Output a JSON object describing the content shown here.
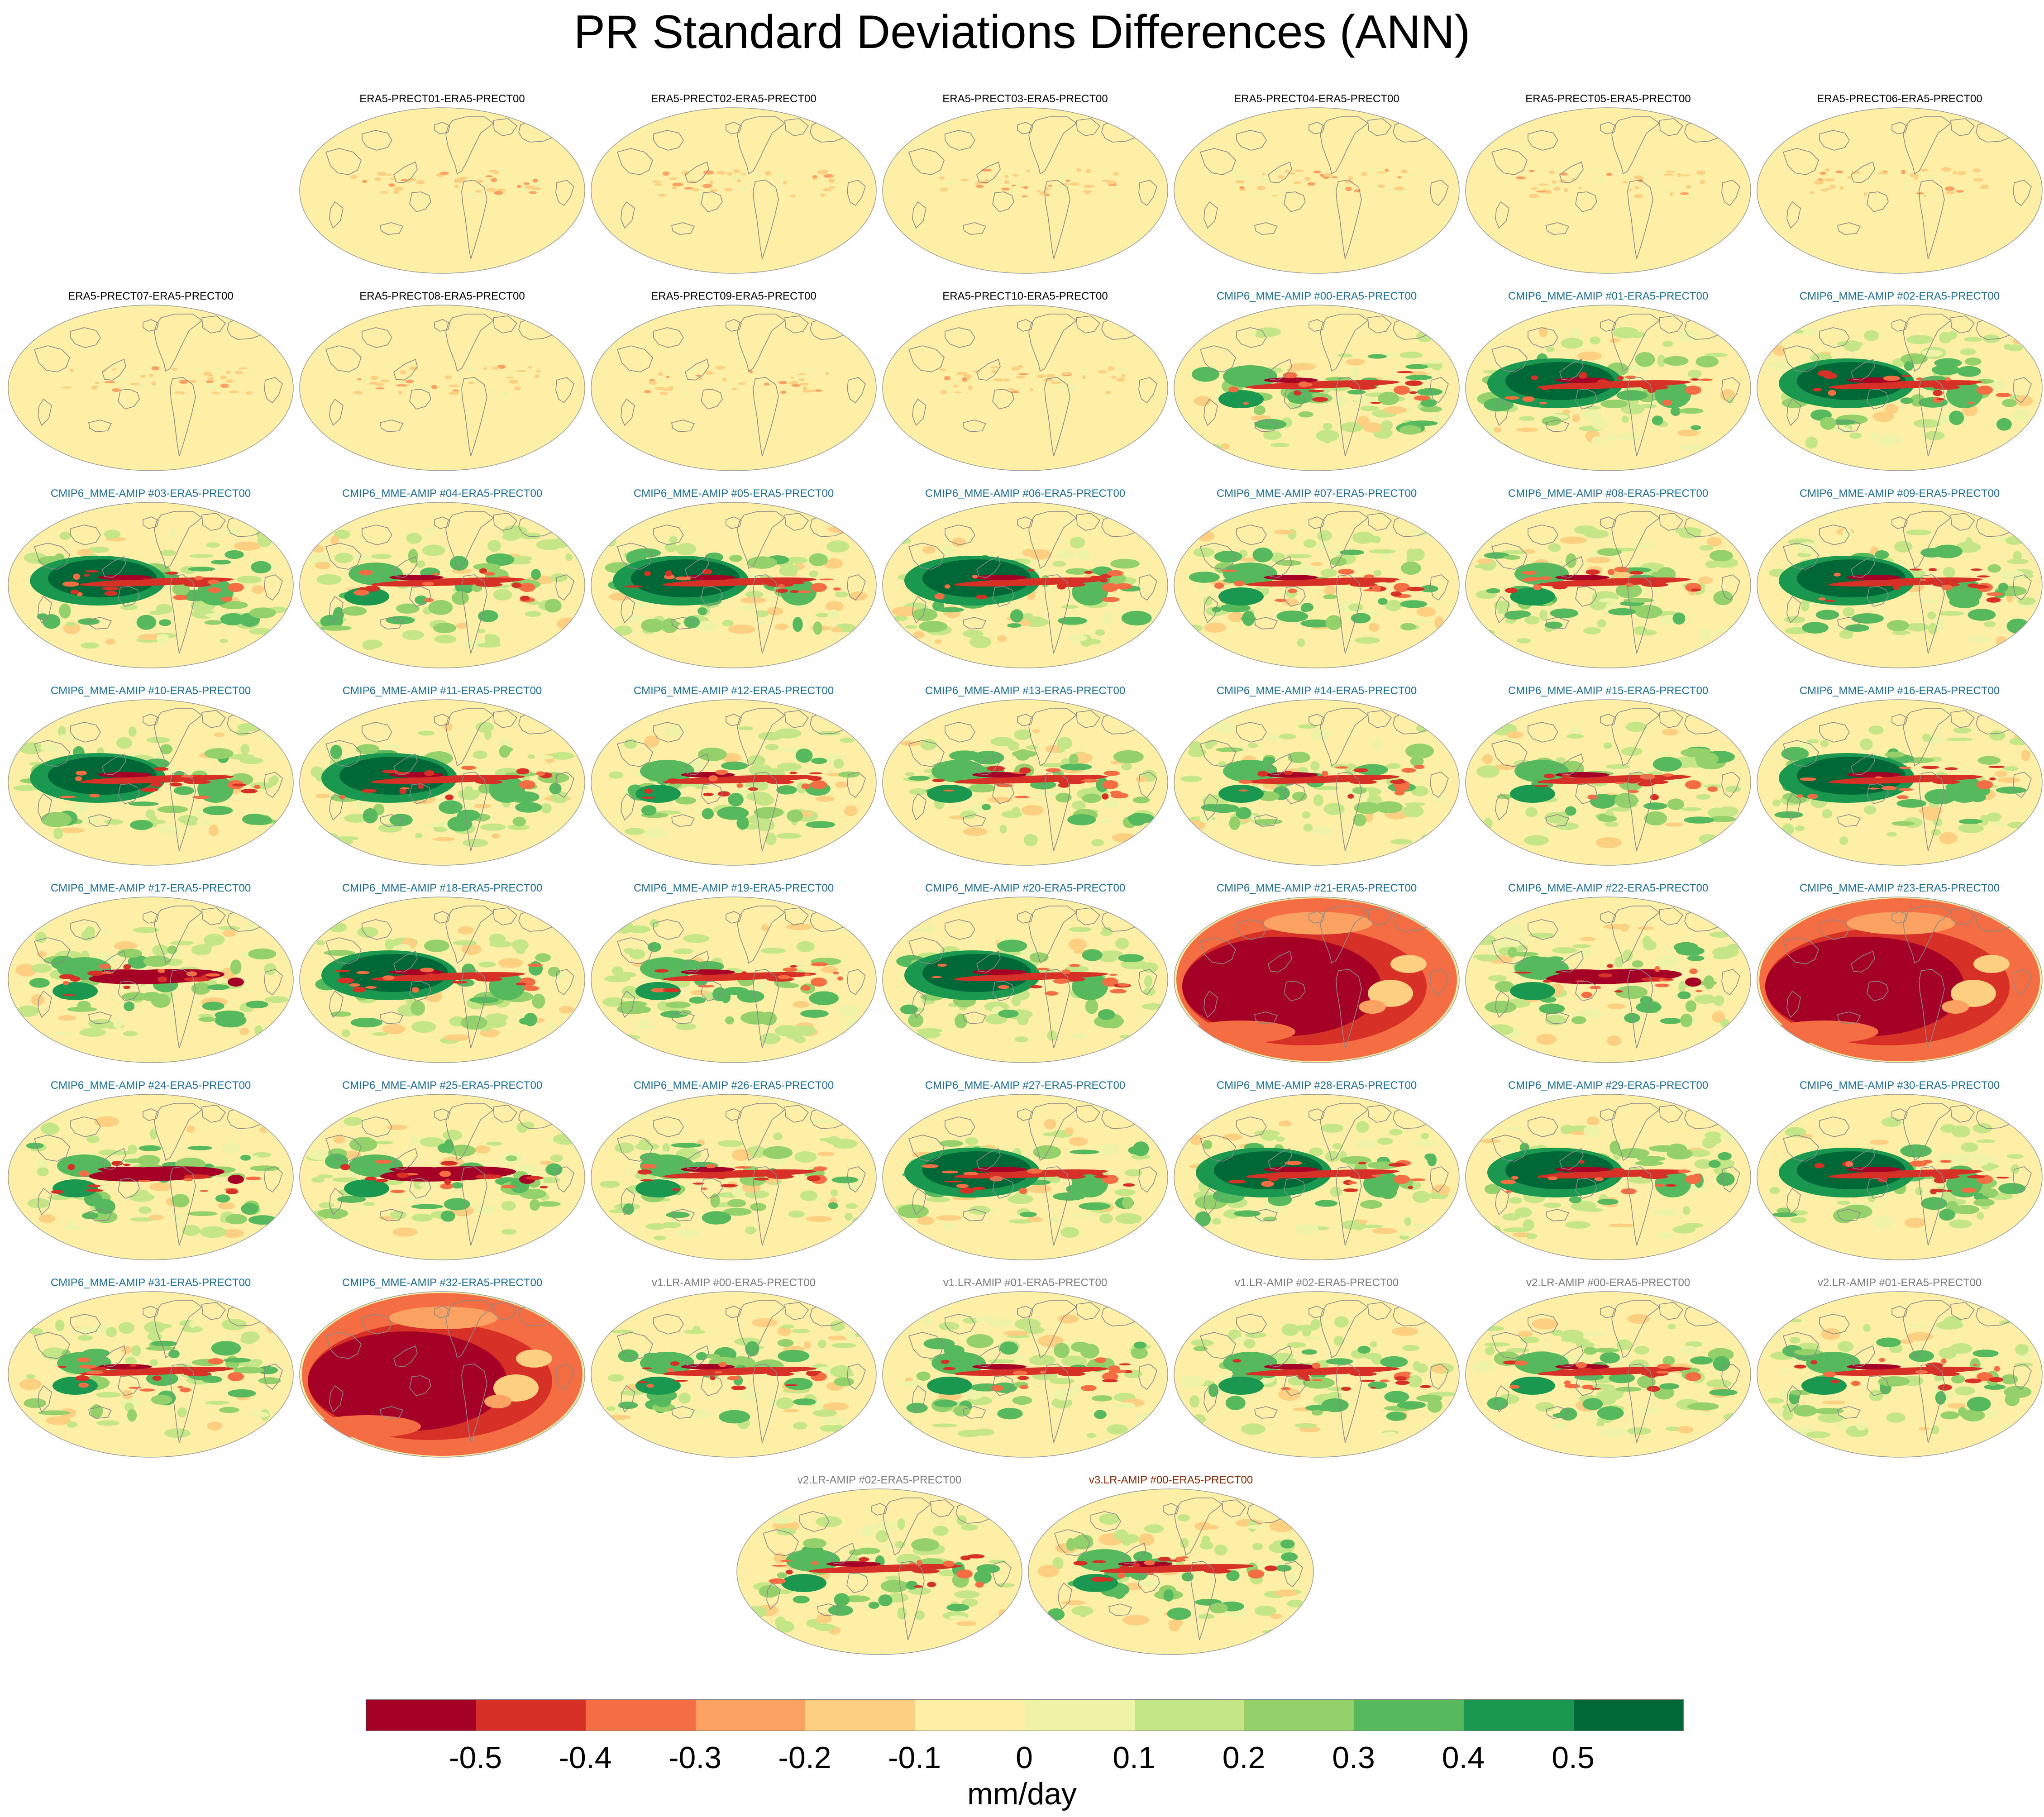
{
  "title": "PR Standard Deviations Differences (ANN)",
  "colors": {
    "ocean_base": "#fdf0a6",
    "coast": "#8a8a8a",
    "title_era5": "#000000",
    "title_cmip6": "#1a6e96",
    "title_v1v2": "#7a7a7a",
    "title_v3": "#8b2500"
  },
  "colorbar": {
    "colors": [
      "#a50026",
      "#d73027",
      "#f46d43",
      "#fba262",
      "#fdcf80",
      "#fdf0a6",
      "#eef3a8",
      "#c4e687",
      "#94d16b",
      "#57b95e",
      "#1a9850",
      "#006837"
    ],
    "ticks": [
      "-0.5",
      "-0.4",
      "-0.3",
      "-0.2",
      "-0.1",
      "0",
      "0.1",
      "0.2",
      "0.3",
      "0.4",
      "0.5"
    ],
    "units": "mm/day"
  },
  "panels": [
    {
      "title": "ERA5-PRECT01-ERA5-PRECT00",
      "group": "era5",
      "pattern": "weak"
    },
    {
      "title": "ERA5-PRECT02-ERA5-PRECT00",
      "group": "era5",
      "pattern": "weak"
    },
    {
      "title": "ERA5-PRECT03-ERA5-PRECT00",
      "group": "era5",
      "pattern": "weak"
    },
    {
      "title": "ERA5-PRECT04-ERA5-PRECT00",
      "group": "era5",
      "pattern": "weak"
    },
    {
      "title": "ERA5-PRECT05-ERA5-PRECT00",
      "group": "era5",
      "pattern": "weak"
    },
    {
      "title": "ERA5-PRECT06-ERA5-PRECT00",
      "group": "era5",
      "pattern": "weak"
    },
    {
      "title": "ERA5-PRECT07-ERA5-PRECT00",
      "group": "era5",
      "pattern": "weak"
    },
    {
      "title": "ERA5-PRECT08-ERA5-PRECT00",
      "group": "era5",
      "pattern": "weak"
    },
    {
      "title": "ERA5-PRECT09-ERA5-PRECT00",
      "group": "era5",
      "pattern": "weak"
    },
    {
      "title": "ERA5-PRECT10-ERA5-PRECT00",
      "group": "era5",
      "pattern": "weak"
    },
    {
      "title": "CMIP6_MME-AMIP  #00-ERA5-PRECT00",
      "group": "cmip6",
      "pattern": "mixed"
    },
    {
      "title": "CMIP6_MME-AMIP  #01-ERA5-PRECT00",
      "group": "cmip6",
      "pattern": "green"
    },
    {
      "title": "CMIP6_MME-AMIP  #02-ERA5-PRECT00",
      "group": "cmip6",
      "pattern": "green"
    },
    {
      "title": "CMIP6_MME-AMIP  #03-ERA5-PRECT00",
      "group": "cmip6",
      "pattern": "green"
    },
    {
      "title": "CMIP6_MME-AMIP  #04-ERA5-PRECT00",
      "group": "cmip6",
      "pattern": "mixed"
    },
    {
      "title": "CMIP6_MME-AMIP  #05-ERA5-PRECT00",
      "group": "cmip6",
      "pattern": "green"
    },
    {
      "title": "CMIP6_MME-AMIP  #06-ERA5-PRECT00",
      "group": "cmip6",
      "pattern": "green"
    },
    {
      "title": "CMIP6_MME-AMIP  #07-ERA5-PRECT00",
      "group": "cmip6",
      "pattern": "mixed"
    },
    {
      "title": "CMIP6_MME-AMIP  #08-ERA5-PRECT00",
      "group": "cmip6",
      "pattern": "mixed"
    },
    {
      "title": "CMIP6_MME-AMIP  #09-ERA5-PRECT00",
      "group": "cmip6",
      "pattern": "green"
    },
    {
      "title": "CMIP6_MME-AMIP  #10-ERA5-PRECT00",
      "group": "cmip6",
      "pattern": "green"
    },
    {
      "title": "CMIP6_MME-AMIP  #11-ERA5-PRECT00",
      "group": "cmip6",
      "pattern": "green"
    },
    {
      "title": "CMIP6_MME-AMIP  #12-ERA5-PRECT00",
      "group": "cmip6",
      "pattern": "mixed"
    },
    {
      "title": "CMIP6_MME-AMIP  #13-ERA5-PRECT00",
      "group": "cmip6",
      "pattern": "mixed"
    },
    {
      "title": "CMIP6_MME-AMIP  #14-ERA5-PRECT00",
      "group": "cmip6",
      "pattern": "mixed"
    },
    {
      "title": "CMIP6_MME-AMIP  #15-ERA5-PRECT00",
      "group": "cmip6",
      "pattern": "mixed"
    },
    {
      "title": "CMIP6_MME-AMIP  #16-ERA5-PRECT00",
      "group": "cmip6",
      "pattern": "green"
    },
    {
      "title": "CMIP6_MME-AMIP  #17-ERA5-PRECT00",
      "group": "cmip6",
      "pattern": "redband"
    },
    {
      "title": "CMIP6_MME-AMIP  #18-ERA5-PRECT00",
      "group": "cmip6",
      "pattern": "green"
    },
    {
      "title": "CMIP6_MME-AMIP  #19-ERA5-PRECT00",
      "group": "cmip6",
      "pattern": "mixed"
    },
    {
      "title": "CMIP6_MME-AMIP  #20-ERA5-PRECT00",
      "group": "cmip6",
      "pattern": "green"
    },
    {
      "title": "CMIP6_MME-AMIP  #21-ERA5-PRECT00",
      "group": "cmip6",
      "pattern": "red"
    },
    {
      "title": "CMIP6_MME-AMIP  #22-ERA5-PRECT00",
      "group": "cmip6",
      "pattern": "redband"
    },
    {
      "title": "CMIP6_MME-AMIP  #23-ERA5-PRECT00",
      "group": "cmip6",
      "pattern": "red"
    },
    {
      "title": "CMIP6_MME-AMIP  #24-ERA5-PRECT00",
      "group": "cmip6",
      "pattern": "redband"
    },
    {
      "title": "CMIP6_MME-AMIP  #25-ERA5-PRECT00",
      "group": "cmip6",
      "pattern": "redband"
    },
    {
      "title": "CMIP6_MME-AMIP  #26-ERA5-PRECT00",
      "group": "cmip6",
      "pattern": "mixed"
    },
    {
      "title": "CMIP6_MME-AMIP  #27-ERA5-PRECT00",
      "group": "cmip6",
      "pattern": "green"
    },
    {
      "title": "CMIP6_MME-AMIP  #28-ERA5-PRECT00",
      "group": "cmip6",
      "pattern": "green"
    },
    {
      "title": "CMIP6_MME-AMIP  #29-ERA5-PRECT00",
      "group": "cmip6",
      "pattern": "green"
    },
    {
      "title": "CMIP6_MME-AMIP  #30-ERA5-PRECT00",
      "group": "cmip6",
      "pattern": "green"
    },
    {
      "title": "CMIP6_MME-AMIP  #31-ERA5-PRECT00",
      "group": "cmip6",
      "pattern": "mixed"
    },
    {
      "title": "CMIP6_MME-AMIP  #32-ERA5-PRECT00",
      "group": "cmip6",
      "pattern": "red"
    },
    {
      "title": "v1.LR-AMIP  #00-ERA5-PRECT00",
      "group": "v1v2",
      "pattern": "mixed"
    },
    {
      "title": "v1.LR-AMIP  #01-ERA5-PRECT00",
      "group": "v1v2",
      "pattern": "mixed"
    },
    {
      "title": "v1.LR-AMIP  #02-ERA5-PRECT00",
      "group": "v1v2",
      "pattern": "mixed"
    },
    {
      "title": "v2.LR-AMIP  #00-ERA5-PRECT00",
      "group": "v1v2",
      "pattern": "mixed"
    },
    {
      "title": "v2.LR-AMIP  #01-ERA5-PRECT00",
      "group": "v1v2",
      "pattern": "mixed"
    },
    {
      "title": "v2.LR-AMIP  #02-ERA5-PRECT00",
      "group": "v1v2",
      "pattern": "mixed"
    },
    {
      "title": "v3.LR-AMIP  #00-ERA5-PRECT00",
      "group": "v3",
      "pattern": "mixed"
    }
  ]
}
